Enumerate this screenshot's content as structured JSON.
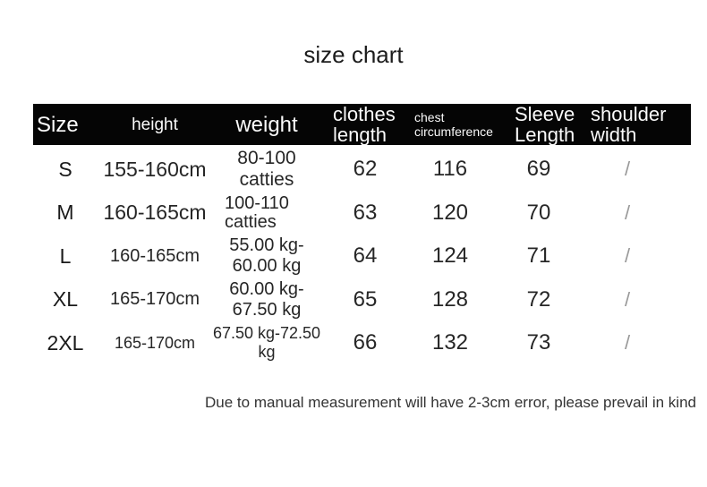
{
  "title": "size chart",
  "table": {
    "columns": [
      "Size",
      "height",
      "weight",
      "clothes\nlength",
      "chest\ncircumference",
      "Sleeve\nLength",
      "shoulder\nwidth"
    ],
    "rows": [
      [
        "S",
        "155-160cm",
        "80-100 catties",
        "62",
        "116",
        "69",
        "/"
      ],
      [
        "M",
        "160-165cm",
        "100-110\ncatties",
        "63",
        "120",
        "70",
        "/"
      ],
      [
        "L",
        "160-165cm",
        "55.00 kg-60.00 kg",
        "64",
        "124",
        "71",
        "/"
      ],
      [
        "XL",
        "165-170cm",
        "60.00 kg-67.50 kg",
        "65",
        "128",
        "72",
        "/"
      ],
      [
        "2XL",
        "165-170cm",
        "67.50 kg-72.50 kg",
        "66",
        "132",
        "73",
        "/"
      ]
    ]
  },
  "footnote": "Due to manual measurement will have 2-3cm error, please prevail in kind",
  "colors": {
    "header_bg": "#050505",
    "header_text": "#fafafa",
    "body_text": "#262626",
    "slash_text": "#999999",
    "background": "#ffffff"
  }
}
